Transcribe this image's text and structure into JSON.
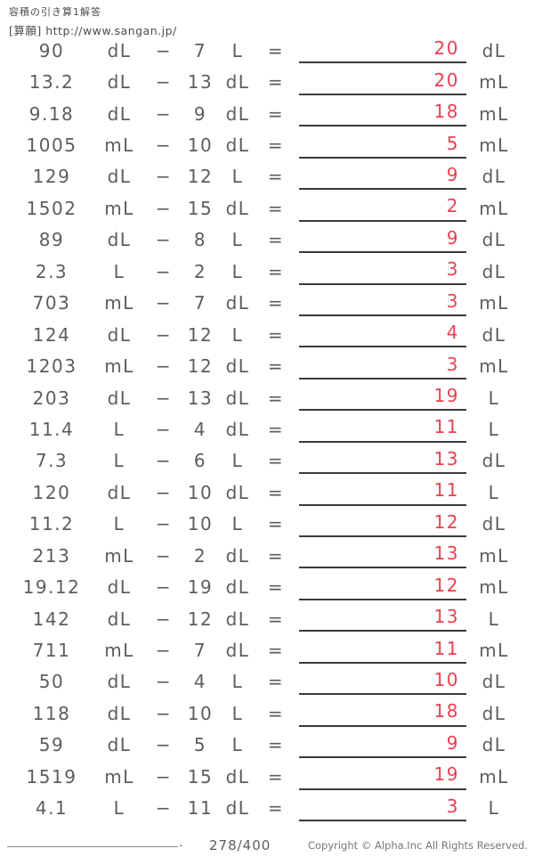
{
  "header": {
    "title": "容積の引き算1解答",
    "source": "[算願] http://www.sangan.jp/"
  },
  "symbols": {
    "minus": "−",
    "equals": "="
  },
  "colors": {
    "answer_red": "#e8414e",
    "text_gray": "#5d5d5d",
    "underline_dark": "#3a3a3a"
  },
  "problems": [
    {
      "minuend": "90",
      "minuend_unit": "dL",
      "subtrahend": "7",
      "subtrahend_unit": "L",
      "answer": "20",
      "answer_unit": "dL"
    },
    {
      "minuend": "13.2",
      "minuend_unit": "dL",
      "subtrahend": "13",
      "subtrahend_unit": "dL",
      "answer": "20",
      "answer_unit": "mL"
    },
    {
      "minuend": "9.18",
      "minuend_unit": "dL",
      "subtrahend": "9",
      "subtrahend_unit": "dL",
      "answer": "18",
      "answer_unit": "mL"
    },
    {
      "minuend": "1005",
      "minuend_unit": "mL",
      "subtrahend": "10",
      "subtrahend_unit": "dL",
      "answer": "5",
      "answer_unit": "mL"
    },
    {
      "minuend": "129",
      "minuend_unit": "dL",
      "subtrahend": "12",
      "subtrahend_unit": "L",
      "answer": "9",
      "answer_unit": "dL"
    },
    {
      "minuend": "1502",
      "minuend_unit": "mL",
      "subtrahend": "15",
      "subtrahend_unit": "dL",
      "answer": "2",
      "answer_unit": "mL"
    },
    {
      "minuend": "89",
      "minuend_unit": "dL",
      "subtrahend": "8",
      "subtrahend_unit": "L",
      "answer": "9",
      "answer_unit": "dL"
    },
    {
      "minuend": "2.3",
      "minuend_unit": "L",
      "subtrahend": "2",
      "subtrahend_unit": "L",
      "answer": "3",
      "answer_unit": "dL"
    },
    {
      "minuend": "703",
      "minuend_unit": "mL",
      "subtrahend": "7",
      "subtrahend_unit": "dL",
      "answer": "3",
      "answer_unit": "mL"
    },
    {
      "minuend": "124",
      "minuend_unit": "dL",
      "subtrahend": "12",
      "subtrahend_unit": "L",
      "answer": "4",
      "answer_unit": "dL"
    },
    {
      "minuend": "1203",
      "minuend_unit": "mL",
      "subtrahend": "12",
      "subtrahend_unit": "dL",
      "answer": "3",
      "answer_unit": "mL"
    },
    {
      "minuend": "203",
      "minuend_unit": "dL",
      "subtrahend": "13",
      "subtrahend_unit": "dL",
      "answer": "19",
      "answer_unit": "L"
    },
    {
      "minuend": "11.4",
      "minuend_unit": "L",
      "subtrahend": "4",
      "subtrahend_unit": "dL",
      "answer": "11",
      "answer_unit": "L"
    },
    {
      "minuend": "7.3",
      "minuend_unit": "L",
      "subtrahend": "6",
      "subtrahend_unit": "L",
      "answer": "13",
      "answer_unit": "dL"
    },
    {
      "minuend": "120",
      "minuend_unit": "dL",
      "subtrahend": "10",
      "subtrahend_unit": "dL",
      "answer": "11",
      "answer_unit": "L"
    },
    {
      "minuend": "11.2",
      "minuend_unit": "L",
      "subtrahend": "10",
      "subtrahend_unit": "L",
      "answer": "12",
      "answer_unit": "dL"
    },
    {
      "minuend": "213",
      "minuend_unit": "mL",
      "subtrahend": "2",
      "subtrahend_unit": "dL",
      "answer": "13",
      "answer_unit": "mL"
    },
    {
      "minuend": "19.12",
      "minuend_unit": "dL",
      "subtrahend": "19",
      "subtrahend_unit": "dL",
      "answer": "12",
      "answer_unit": "mL"
    },
    {
      "minuend": "142",
      "minuend_unit": "dL",
      "subtrahend": "12",
      "subtrahend_unit": "dL",
      "answer": "13",
      "answer_unit": "L"
    },
    {
      "minuend": "711",
      "minuend_unit": "mL",
      "subtrahend": "7",
      "subtrahend_unit": "dL",
      "answer": "11",
      "answer_unit": "mL"
    },
    {
      "minuend": "50",
      "minuend_unit": "dL",
      "subtrahend": "4",
      "subtrahend_unit": "L",
      "answer": "10",
      "answer_unit": "dL"
    },
    {
      "minuend": "118",
      "minuend_unit": "dL",
      "subtrahend": "10",
      "subtrahend_unit": "L",
      "answer": "18",
      "answer_unit": "dL"
    },
    {
      "minuend": "59",
      "minuend_unit": "dL",
      "subtrahend": "5",
      "subtrahend_unit": "L",
      "answer": "9",
      "answer_unit": "dL"
    },
    {
      "minuend": "1519",
      "minuend_unit": "mL",
      "subtrahend": "15",
      "subtrahend_unit": "dL",
      "answer": "19",
      "answer_unit": "mL"
    },
    {
      "minuend": "4.1",
      "minuend_unit": "L",
      "subtrahend": "11",
      "subtrahend_unit": "dL",
      "answer": "3",
      "answer_unit": "L"
    }
  ],
  "footer": {
    "name_line_dot": ".",
    "page": "278/400",
    "copyright": "Copyright © Alpha.Inc All Rights Reserved."
  }
}
